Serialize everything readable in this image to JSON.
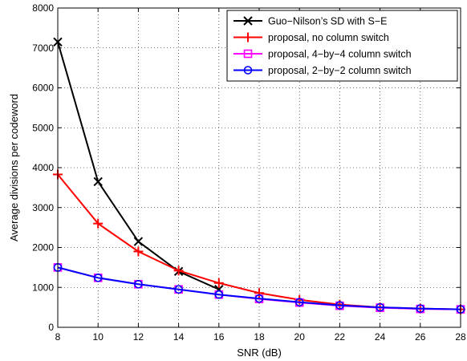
{
  "chart_data": {
    "type": "line",
    "xlabel": "SNR (dB)",
    "ylabel": "Average divisions per codeword",
    "xlim": [
      8,
      28
    ],
    "ylim": [
      0,
      8000
    ],
    "xticks": [
      "8",
      "10",
      "12",
      "14",
      "16",
      "18",
      "20",
      "22",
      "24",
      "26",
      "28"
    ],
    "yticks": [
      "0",
      "1000",
      "2000",
      "3000",
      "4000",
      "5000",
      "6000",
      "7000",
      "8000"
    ],
    "grid": "dotted",
    "legend_position": "top-right",
    "series": [
      {
        "name": "Guo−Nilson’s SD with S−E",
        "color": "#000000",
        "marker": "x",
        "x": [
          8,
          10,
          12,
          14,
          16
        ],
        "y": [
          7150,
          3650,
          2150,
          1400,
          950
        ]
      },
      {
        "name": "proposal, no column switch",
        "color": "#ff0000",
        "marker": "plus",
        "x": [
          8,
          10,
          12,
          14,
          16,
          18,
          20,
          22,
          24,
          26,
          28
        ],
        "y": [
          3830,
          2600,
          1900,
          1420,
          1110,
          860,
          690,
          570,
          500,
          470,
          450
        ]
      },
      {
        "name": "proposal, 4−by−4 column switch",
        "color": "#ff00ff",
        "marker": "square",
        "x": [
          8,
          10,
          12,
          14,
          16,
          18,
          20,
          22,
          24,
          26,
          28
        ],
        "y": [
          1500,
          1240,
          1080,
          950,
          820,
          710,
          620,
          540,
          490,
          460,
          450
        ]
      },
      {
        "name": "proposal, 2−by−2 column switch",
        "color": "#0000ff",
        "marker": "circle",
        "x": [
          8,
          10,
          12,
          14,
          16,
          18,
          20,
          22,
          24,
          26,
          28
        ],
        "y": [
          1500,
          1240,
          1080,
          950,
          820,
          720,
          630,
          550,
          500,
          470,
          450
        ]
      }
    ]
  }
}
